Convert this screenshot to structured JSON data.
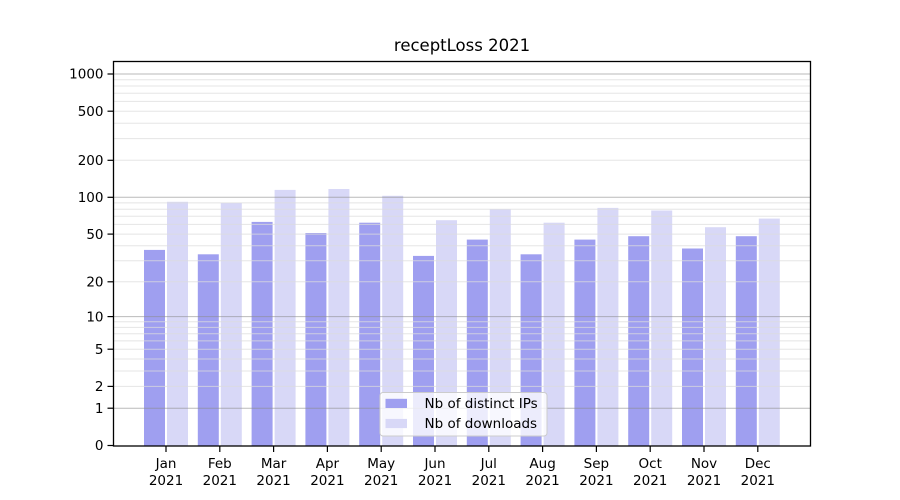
{
  "chart_data": {
    "type": "bar",
    "title": "receptLoss 2021",
    "categories": [
      "Jan",
      "Feb",
      "Mar",
      "Apr",
      "May",
      "Jun",
      "Jul",
      "Aug",
      "Sep",
      "Oct",
      "Nov",
      "Dec"
    ],
    "category_year": "2021",
    "series": [
      {
        "name": "Nb of distinct IPs",
        "color": "#9f9ff0",
        "values": [
          37,
          34,
          63,
          51,
          62,
          33,
          45,
          34,
          45,
          48,
          38,
          48
        ]
      },
      {
        "name": "Nb of downloads",
        "color": "#d8d8f7",
        "values": [
          92,
          90,
          115,
          117,
          103,
          65,
          80,
          62,
          82,
          78,
          57,
          67
        ]
      }
    ],
    "y_axis": {
      "scale": "log1p",
      "ticks": [
        0,
        1,
        2,
        5,
        10,
        20,
        50,
        100,
        200,
        500,
        1000
      ],
      "ylim": [
        0,
        1000
      ],
      "major_gridlines_at": [
        1,
        10,
        100,
        1000
      ],
      "minor_gridline_decades": [
        1,
        10,
        100
      ]
    },
    "legend": {
      "position": "inside-bottom-center",
      "background": "rgba(255,255,255,0.8)",
      "border_color": "#cccccc"
    },
    "grid": {
      "major_color": "#8c8c8c",
      "minor_color": "#dcdcdc"
    },
    "colors": {
      "spine": "#000000",
      "text": "#000000",
      "background": "#ffffff"
    }
  }
}
